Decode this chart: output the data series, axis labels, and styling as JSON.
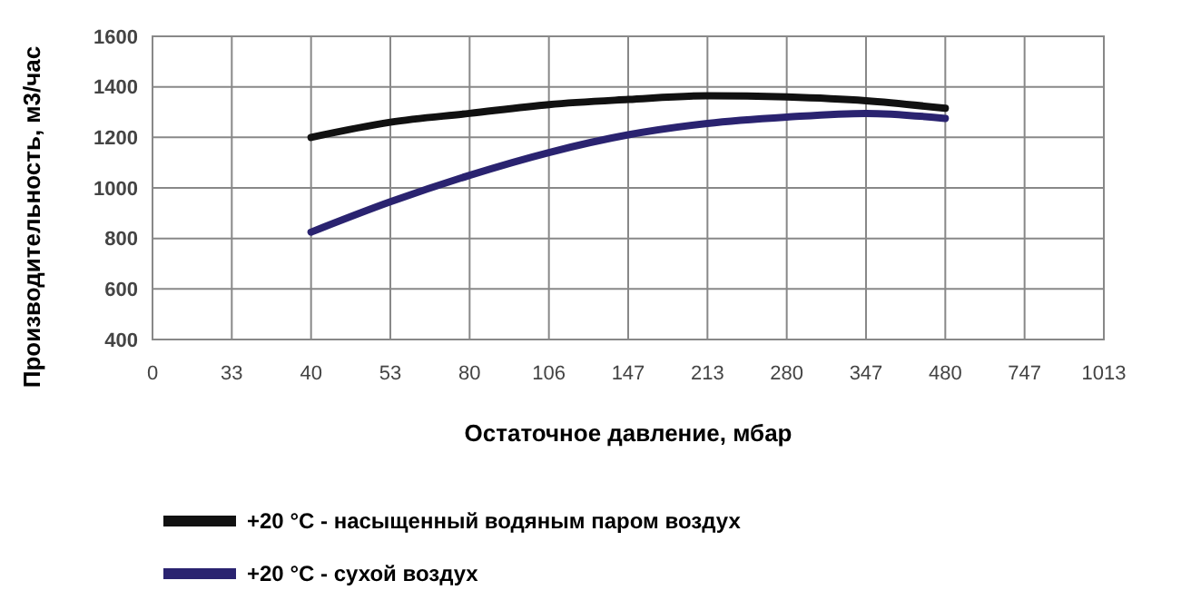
{
  "chart_data": {
    "type": "line",
    "xlabel": "Остаточное давление, мбар",
    "ylabel": "Производительность, м3/час",
    "categories": [
      "0",
      "33",
      "40",
      "53",
      "80",
      "106",
      "147",
      "213",
      "280",
      "347",
      "480",
      "747",
      "1013"
    ],
    "series": [
      {
        "name": "+20 °C - насыщенный водяным паром воздух",
        "color": "#111111",
        "values": [
          null,
          null,
          1200,
          1260,
          1295,
          1330,
          1350,
          1365,
          1360,
          1345,
          1315,
          null,
          null
        ]
      },
      {
        "name": "+20 °C - сухой воздух",
        "color": "#2a2370",
        "values": [
          null,
          null,
          825,
          945,
          1050,
          1140,
          1210,
          1255,
          1280,
          1295,
          1275,
          null,
          null
        ]
      }
    ],
    "ylim": [
      400,
      1600
    ],
    "yticks": [
      400,
      600,
      800,
      1000,
      1200,
      1400,
      1600
    ],
    "grid": true,
    "legend": "bottom",
    "marker": "none",
    "line_style": "solid"
  }
}
